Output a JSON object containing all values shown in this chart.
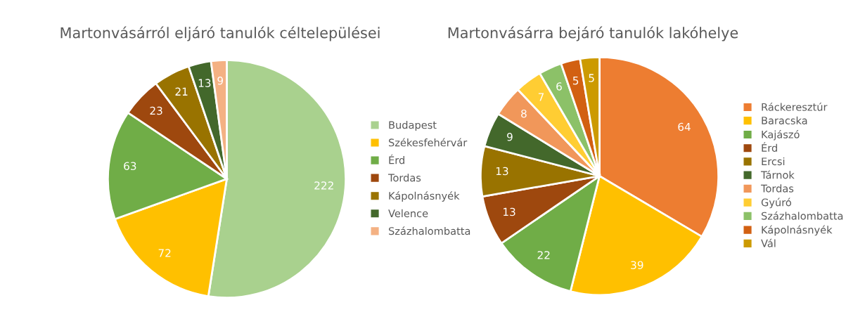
{
  "chart_data": [
    {
      "type": "pie",
      "title": "Martonvásárról eljáró tanulók céltelepülései",
      "categories": [
        "Budapest",
        "Székesfehérvár",
        "Érd",
        "Tordas",
        "Kápolnásnyék",
        "Velence",
        "Százhalombatta"
      ],
      "values": [
        222,
        72,
        63,
        23,
        21,
        13,
        9
      ],
      "colors": [
        "#a9d18e",
        "#ffc000",
        "#70ad47",
        "#9e480e",
        "#997300",
        "#43682b",
        "#f4b183"
      ],
      "data_labels": true,
      "legend": "right"
    },
    {
      "type": "pie",
      "title": "Martonvásárra bejáró tanulók lakóhelye",
      "categories": [
        "Ráckeresztúr",
        "Baracska",
        "Kajászó",
        "Érd",
        "Ercsi",
        "Tárnok",
        "Tordas",
        "Gyúró",
        "Százhalombatta",
        "Kápolnásnyék",
        "Vál"
      ],
      "values": [
        64,
        39,
        22,
        13,
        13,
        9,
        8,
        7,
        6,
        5,
        5
      ],
      "colors": [
        "#ed7d31",
        "#ffc000",
        "#70ad47",
        "#9e480e",
        "#997300",
        "#43682b",
        "#f1975a",
        "#ffcd33",
        "#8cc168",
        "#d26012",
        "#cc9a00"
      ],
      "data_labels": true,
      "legend": "right"
    }
  ]
}
